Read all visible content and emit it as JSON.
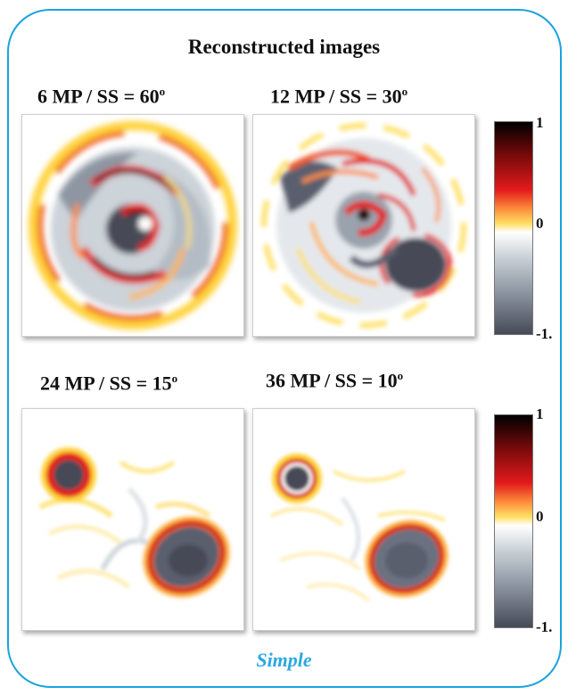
{
  "title": "Reconstructed images",
  "panels": [
    {
      "label_main": "6 MP / SS = 60",
      "label_sup": "o"
    },
    {
      "label_main": "12 MP / SS = 30",
      "label_sup": "o"
    },
    {
      "label_main": "24 MP / SS = 15",
      "label_sup": "o"
    },
    {
      "label_main": "36 MP / SS = 10",
      "label_sup": "o"
    }
  ],
  "colorbars": [
    {
      "max": "1",
      "mid": "0",
      "min": "-1."
    },
    {
      "max": "1",
      "mid": "0",
      "min": "-1."
    }
  ],
  "footer": "Simple",
  "colors": {
    "frame": "#1aa3dc",
    "footer": "#2aa8e0",
    "negative": "#5a5f6e",
    "positive_ring": "#e0301e",
    "positive_edge": "#ffd23a"
  }
}
